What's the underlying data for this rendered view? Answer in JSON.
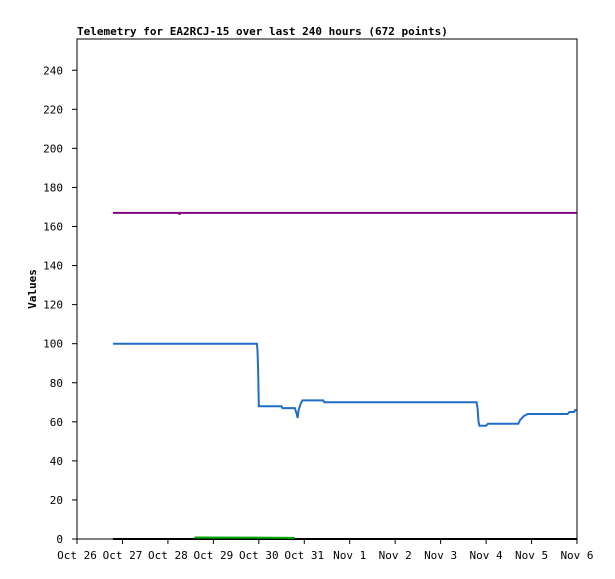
{
  "chart_data": {
    "type": "line",
    "title": "Telemetry for EA2RCJ-15 over last 240 hours (672 points)",
    "xlabel": "",
    "ylabel": "Values",
    "ylim": [
      0,
      256
    ],
    "xlim": [
      "2023-10-26T00:00",
      "2023-11-06T00:00"
    ],
    "y_ticks": [
      0,
      20,
      40,
      60,
      80,
      100,
      120,
      140,
      160,
      180,
      200,
      220,
      240
    ],
    "x_ticks": [
      {
        "label": "Oct 26",
        "date": "2023-10-26T00:00"
      },
      {
        "label": "Oct 27",
        "date": "2023-10-27T00:00"
      },
      {
        "label": "Oct 28",
        "date": "2023-10-28T00:00"
      },
      {
        "label": "Oct 29",
        "date": "2023-10-29T00:00"
      },
      {
        "label": "Oct 30",
        "date": "2023-10-30T00:00"
      },
      {
        "label": "Oct 31",
        "date": "2023-10-31T00:00"
      },
      {
        "label": "Nov 1",
        "date": "2023-11-01T00:00"
      },
      {
        "label": "Nov 2",
        "date": "2023-11-02T00:00"
      },
      {
        "label": "Nov 3",
        "date": "2023-11-03T00:00"
      },
      {
        "label": "Nov 4",
        "date": "2023-11-04T00:00"
      },
      {
        "label": "Nov 5",
        "date": "2023-11-05T00:00"
      },
      {
        "label": "Nov 6",
        "date": "2023-11-06T00:00"
      }
    ],
    "grid": false,
    "legend": "none",
    "series": [
      {
        "color": "#800080",
        "points": [
          [
            "2023-10-26T19:00",
            167
          ],
          [
            "2023-10-28T06:00",
            167
          ],
          [
            "2023-10-28T06:10",
            166
          ],
          [
            "2023-10-28T06:20",
            167
          ],
          [
            "2023-11-05T23:50",
            167
          ]
        ]
      },
      {
        "color": "#1e6ec8",
        "points": [
          [
            "2023-10-26T19:00",
            100
          ],
          [
            "2023-10-29T23:00",
            100
          ],
          [
            "2023-10-29T23:20",
            96
          ],
          [
            "2023-10-29T23:40",
            85
          ],
          [
            "2023-10-30T00:00",
            68
          ],
          [
            "2023-10-30T12:00",
            68
          ],
          [
            "2023-10-30T12:30",
            67
          ],
          [
            "2023-10-30T19:00",
            67
          ],
          [
            "2023-10-30T20:00",
            64
          ],
          [
            "2023-10-30T20:30",
            62
          ],
          [
            "2023-10-30T21:00",
            66
          ],
          [
            "2023-10-30T22:00",
            69
          ],
          [
            "2023-10-30T23:00",
            71
          ],
          [
            "2023-10-31T10:00",
            71
          ],
          [
            "2023-10-31T10:30",
            70
          ],
          [
            "2023-11-03T19:00",
            70
          ],
          [
            "2023-11-03T19:30",
            67
          ],
          [
            "2023-11-03T20:00",
            60
          ],
          [
            "2023-11-03T20:30",
            58
          ],
          [
            "2023-11-04T00:00",
            58
          ],
          [
            "2023-11-04T01:00",
            59
          ],
          [
            "2023-11-04T17:00",
            59
          ],
          [
            "2023-11-04T18:00",
            61
          ],
          [
            "2023-11-04T20:00",
            63
          ],
          [
            "2023-11-04T22:00",
            64
          ],
          [
            "2023-11-05T19:00",
            64
          ],
          [
            "2023-11-05T20:00",
            65
          ],
          [
            "2023-11-05T22:30",
            65
          ],
          [
            "2023-11-05T23:00",
            66
          ],
          [
            "2023-11-05T23:50",
            66
          ]
        ]
      },
      {
        "color": "#000000",
        "points": [
          [
            "2023-10-26T19:00",
            0
          ],
          [
            "2023-11-05T23:50",
            0
          ]
        ]
      },
      {
        "color": "#00aa00",
        "points": [
          [
            "2023-10-28T14:00",
            0.8
          ],
          [
            "2023-10-28T18:00",
            0.8
          ],
          [
            "2023-10-30T18:00",
            0.6
          ],
          [
            "2023-10-30T19:00",
            0.6
          ]
        ]
      }
    ]
  }
}
